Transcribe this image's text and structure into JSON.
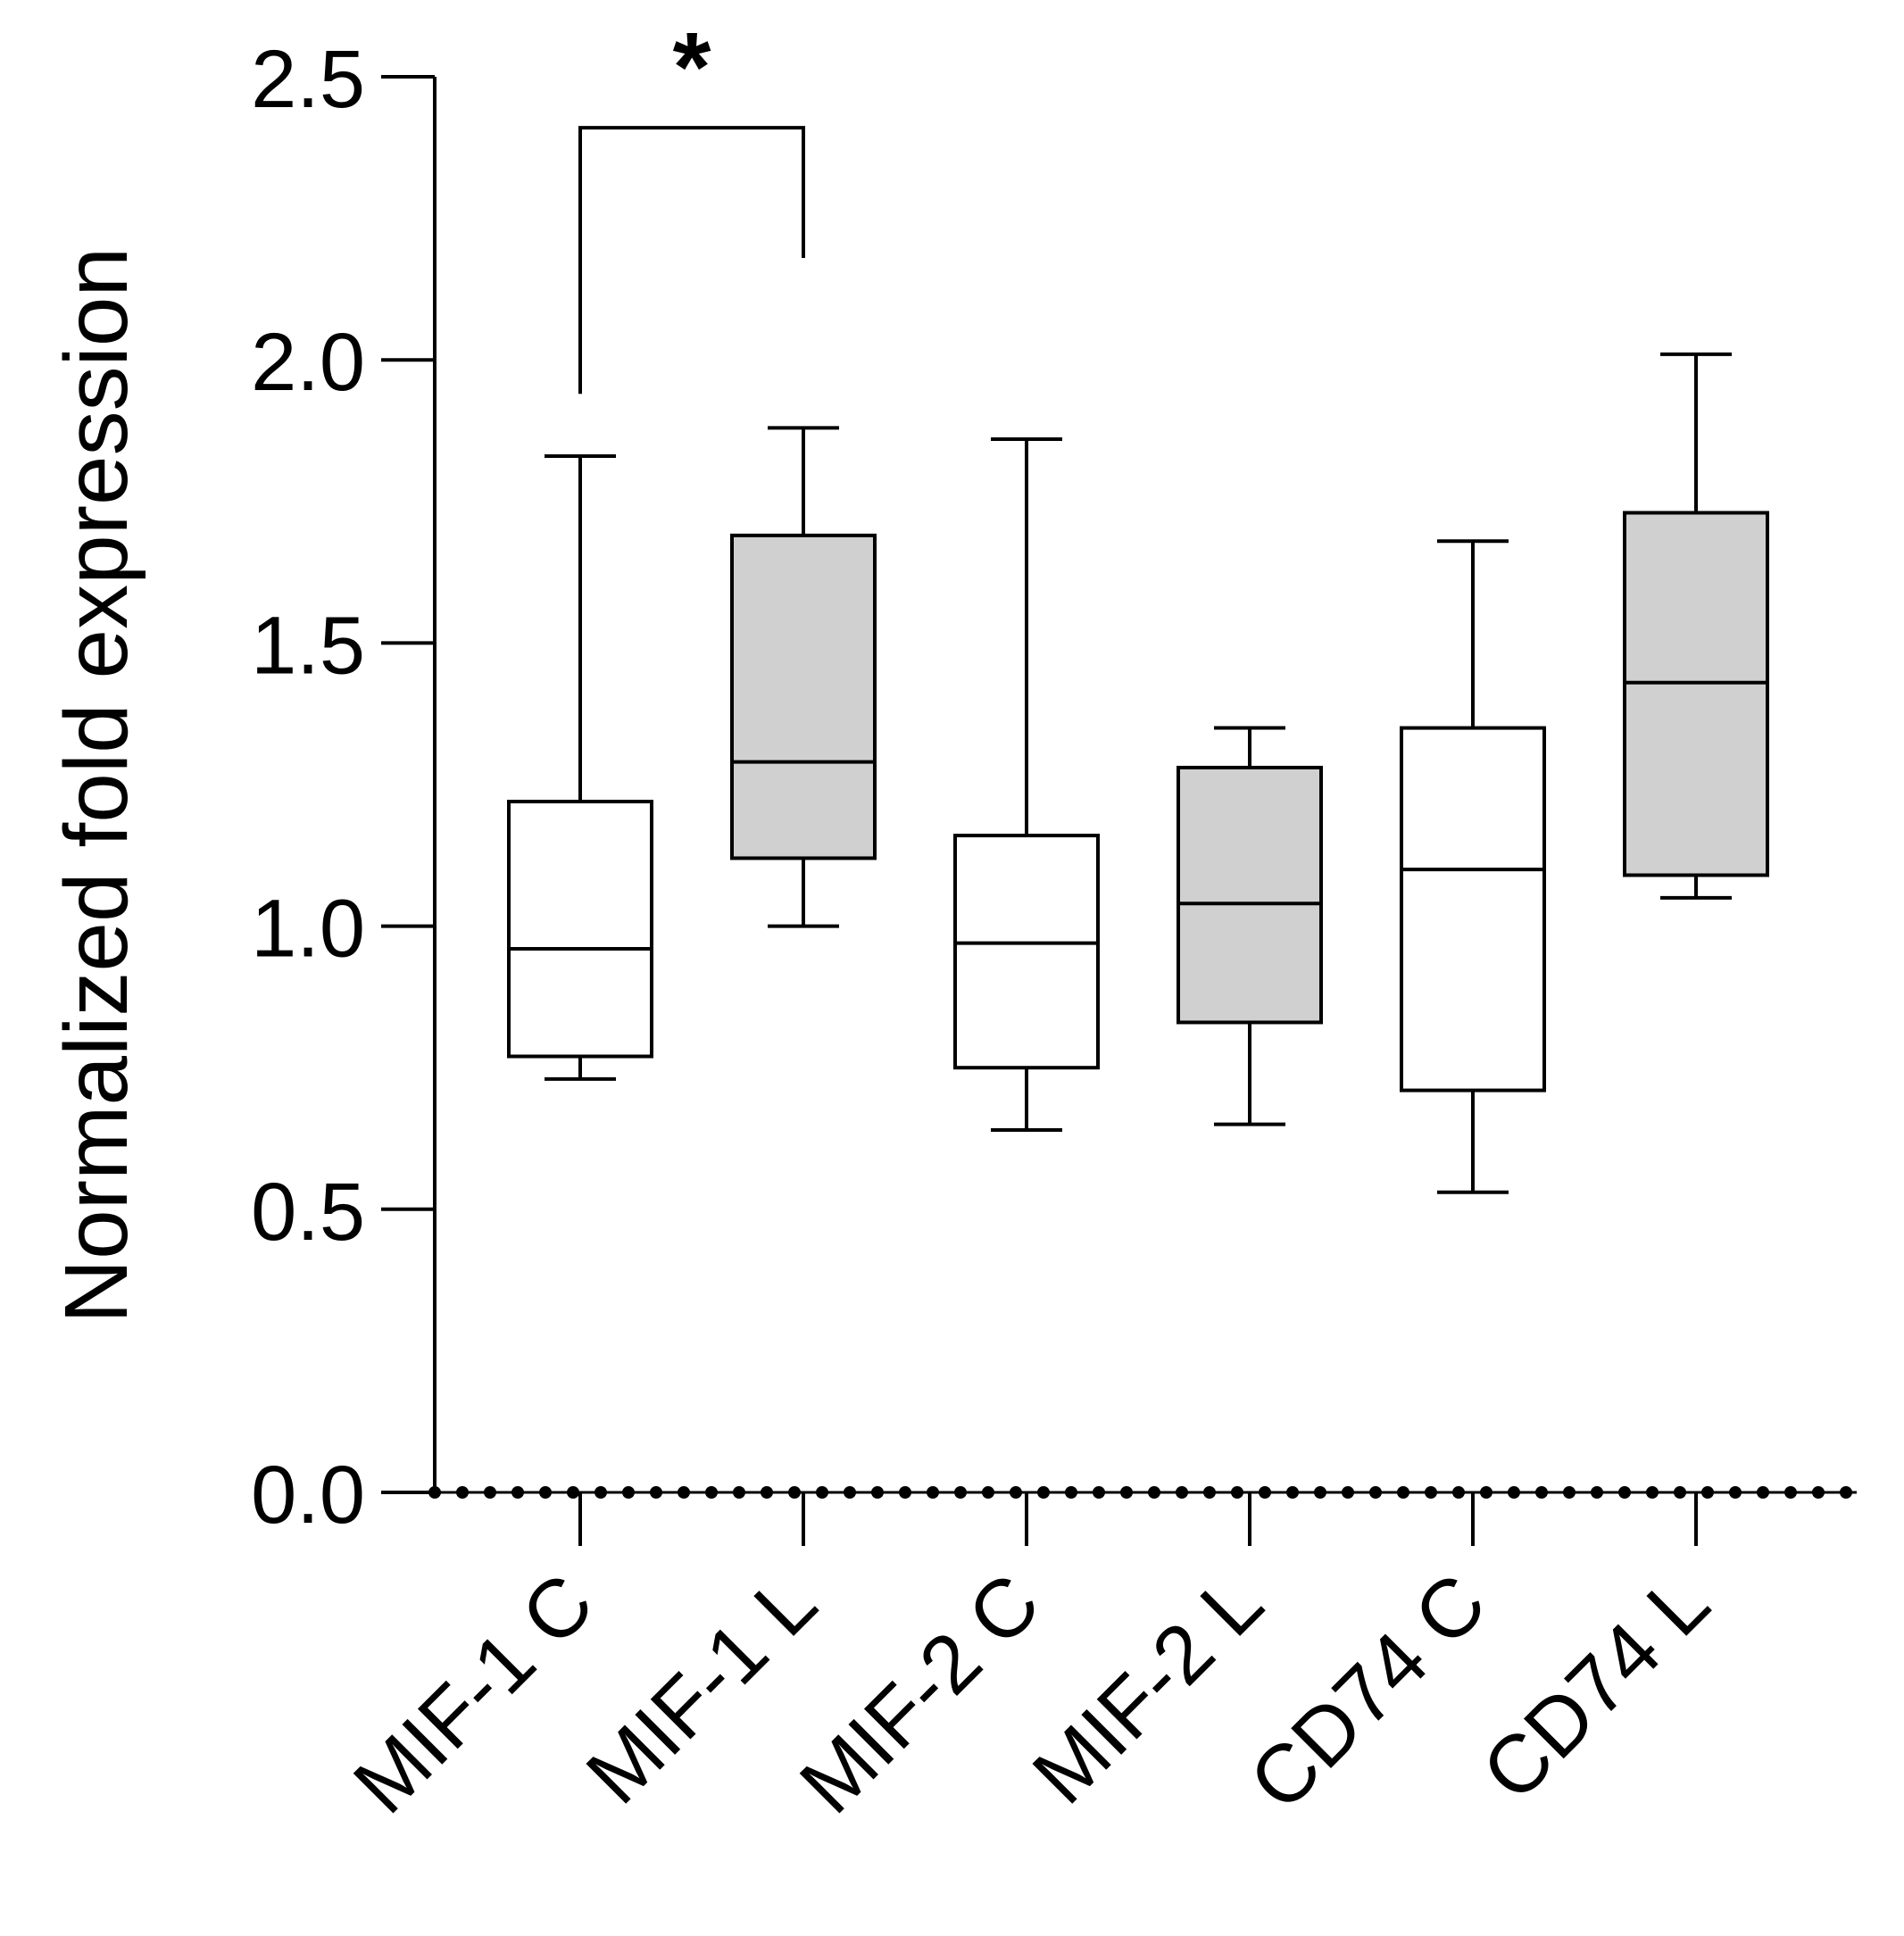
{
  "chart_data": {
    "type": "box",
    "title": "",
    "xlabel": "",
    "ylabel": "Normalized fold expression",
    "ylim": [
      0,
      2.5
    ],
    "yticks": [
      "0.0",
      "0.5",
      "1.0",
      "1.5",
      "2.0",
      "2.5"
    ],
    "categories": [
      "MIF-1 C",
      "MIF-1 L",
      "MIF-2 C",
      "MIF-2 L",
      "CD74 C",
      "CD74 L"
    ],
    "boxes": [
      {
        "name": "MIF-1 C",
        "min": 0.73,
        "q1": 0.77,
        "median": 0.96,
        "q3": 1.22,
        "max": 1.83,
        "fill": "#ffffff"
      },
      {
        "name": "MIF-1 L",
        "min": 1.0,
        "q1": 1.12,
        "median": 1.29,
        "q3": 1.69,
        "max": 1.88,
        "fill": "#d0d0d0"
      },
      {
        "name": "MIF-2 C",
        "min": 0.64,
        "q1": 0.75,
        "median": 0.97,
        "q3": 1.16,
        "max": 1.86,
        "fill": "#ffffff"
      },
      {
        "name": "MIF-2 L",
        "min": 0.65,
        "q1": 0.83,
        "median": 1.04,
        "q3": 1.28,
        "max": 1.35,
        "fill": "#d0d0d0"
      },
      {
        "name": "CD74 C",
        "min": 0.53,
        "q1": 0.71,
        "median": 1.1,
        "q3": 1.35,
        "max": 1.68,
        "fill": "#ffffff"
      },
      {
        "name": "CD74 L",
        "min": 1.05,
        "q1": 1.09,
        "median": 1.43,
        "q3": 1.73,
        "max": 2.01,
        "fill": "#d0d0d0"
      }
    ],
    "significance": [
      {
        "from": "MIF-1 C",
        "to": "MIF-1 L",
        "label": "*",
        "bar_y": 2.41,
        "left_y": 1.94,
        "right_y": 2.18
      }
    ],
    "baseline": {
      "value": 0.0,
      "style": "dotted"
    }
  }
}
